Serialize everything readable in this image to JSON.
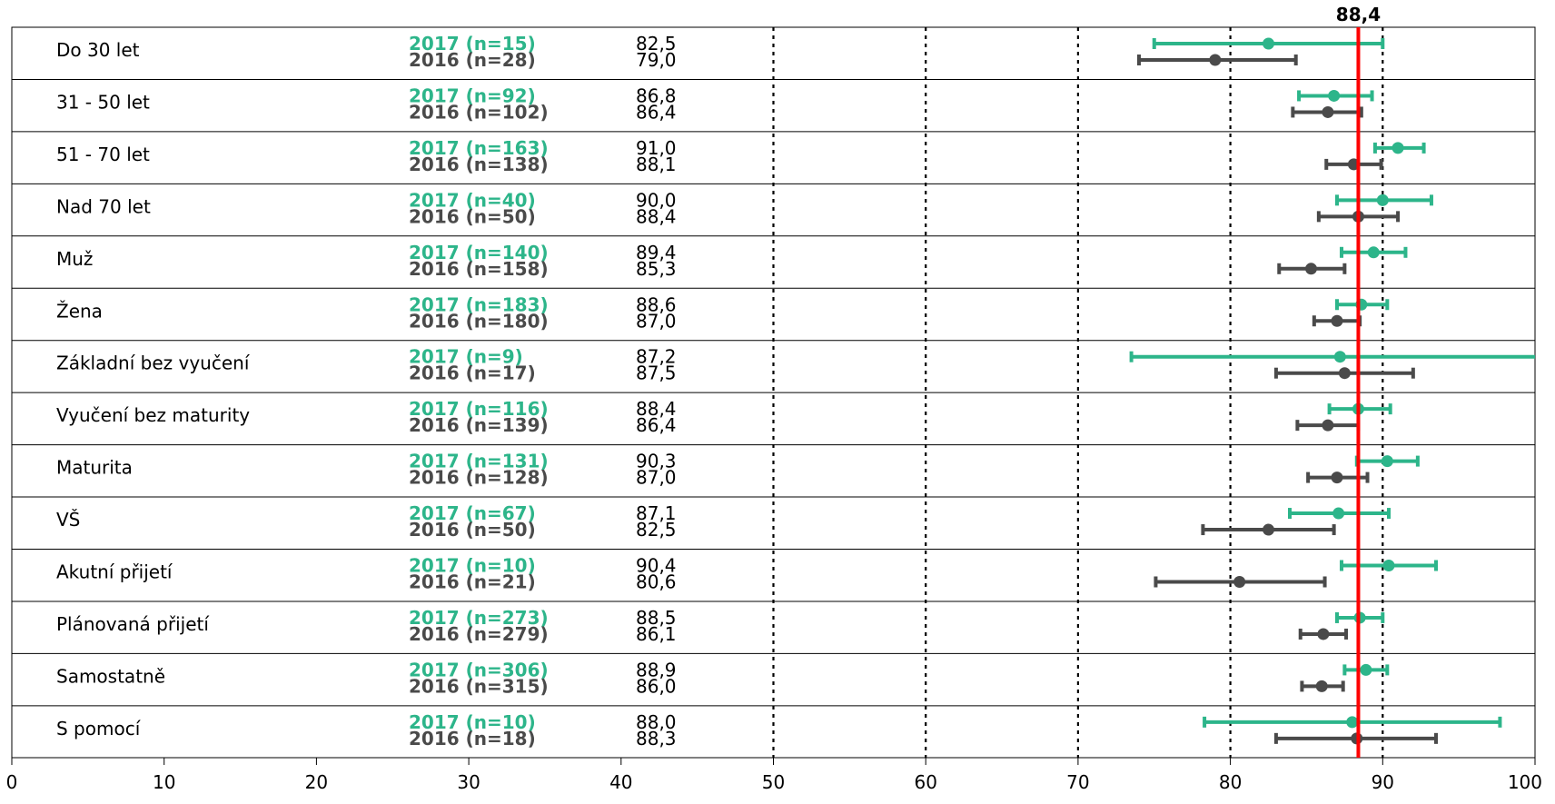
{
  "colors": {
    "series_2017": "#2db58a",
    "series_2016": "#4a4a4a",
    "reference": "#ff0000",
    "grid": "#000000"
  },
  "chart_data": {
    "type": "scatter",
    "subtype": "dot-plot-with-error-bars",
    "title": "",
    "xlabel": "",
    "ylabel": "",
    "xlim": [
      0,
      100
    ],
    "x_ticks": [
      "0",
      "10",
      "20",
      "30",
      "40",
      "50",
      "60",
      "70",
      "80",
      "90",
      "100"
    ],
    "dotted_gridlines_at": [
      50,
      60,
      70,
      80,
      90
    ],
    "reference_line": {
      "value": 88.4,
      "label": "88,4"
    },
    "rows": [
      {
        "category": "Do 30 let",
        "series": [
          {
            "label": "2017 (n=15)",
            "value_text": "82,5",
            "value": 82.5,
            "low": 75.0,
            "high": 90.0
          },
          {
            "label": "2016 (n=28)",
            "value_text": "79,0",
            "value": 79.0,
            "low": 74.0,
            "high": 84.3
          }
        ]
      },
      {
        "category": "31 - 50 let",
        "series": [
          {
            "label": "2017 (n=92)",
            "value_text": "86,8",
            "value": 86.8,
            "low": 84.5,
            "high": 89.3
          },
          {
            "label": "2016 (n=102)",
            "value_text": "86,4",
            "value": 86.4,
            "low": 84.1,
            "high": 88.6
          }
        ]
      },
      {
        "category": "51 - 70 let",
        "series": [
          {
            "label": "2017 (n=163)",
            "value_text": "91,0",
            "value": 91.0,
            "low": 89.5,
            "high": 92.7
          },
          {
            "label": "2016 (n=138)",
            "value_text": "88,1",
            "value": 88.1,
            "low": 86.3,
            "high": 89.9
          }
        ]
      },
      {
        "category": "Nad 70 let",
        "series": [
          {
            "label": "2017 (n=40)",
            "value_text": "90,0",
            "value": 90.0,
            "low": 87.0,
            "high": 93.2
          },
          {
            "label": "2016 (n=50)",
            "value_text": "88,4",
            "value": 88.4,
            "low": 85.8,
            "high": 91.0
          }
        ]
      },
      {
        "category": "Muž",
        "series": [
          {
            "label": "2017 (n=140)",
            "value_text": "89,4",
            "value": 89.4,
            "low": 87.3,
            "high": 91.5
          },
          {
            "label": "2016 (n=158)",
            "value_text": "85,3",
            "value": 85.3,
            "low": 83.2,
            "high": 87.5
          }
        ]
      },
      {
        "category": "Žena",
        "series": [
          {
            "label": "2017 (n=183)",
            "value_text": "88,6",
            "value": 88.6,
            "low": 87.0,
            "high": 90.3
          },
          {
            "label": "2016 (n=180)",
            "value_text": "87,0",
            "value": 87.0,
            "low": 85.5,
            "high": 88.5
          }
        ]
      },
      {
        "category": "Základní bez vyučení",
        "series": [
          {
            "label": "2017 (n=9)",
            "value_text": "87,2",
            "value": 87.2,
            "low": 73.5,
            "high": 100.5
          },
          {
            "label": "2016 (n=17)",
            "value_text": "87,5",
            "value": 87.5,
            "low": 83.0,
            "high": 92.0
          }
        ]
      },
      {
        "category": "Vyučení bez maturity",
        "series": [
          {
            "label": "2017 (n=116)",
            "value_text": "88,4",
            "value": 88.4,
            "low": 86.5,
            "high": 90.5
          },
          {
            "label": "2016 (n=139)",
            "value_text": "86,4",
            "value": 86.4,
            "low": 84.4,
            "high": 88.4
          }
        ]
      },
      {
        "category": "Maturita",
        "series": [
          {
            "label": "2017 (n=131)",
            "value_text": "90,3",
            "value": 90.3,
            "low": 88.3,
            "high": 92.3
          },
          {
            "label": "2016 (n=128)",
            "value_text": "87,0",
            "value": 87.0,
            "low": 85.1,
            "high": 89.0
          }
        ]
      },
      {
        "category": "VŠ",
        "series": [
          {
            "label": "2017 (n=67)",
            "value_text": "87,1",
            "value": 87.1,
            "low": 83.9,
            "high": 90.4
          },
          {
            "label": "2016 (n=50)",
            "value_text": "82,5",
            "value": 82.5,
            "low": 78.2,
            "high": 86.8
          }
        ]
      },
      {
        "category": "Akutní přijetí",
        "series": [
          {
            "label": "2017 (n=10)",
            "value_text": "90,4",
            "value": 90.4,
            "low": 87.3,
            "high": 93.5
          },
          {
            "label": "2016 (n=21)",
            "value_text": "80,6",
            "value": 80.6,
            "low": 75.1,
            "high": 86.2
          }
        ]
      },
      {
        "category": "Plánovaná přijetí",
        "series": [
          {
            "label": "2017 (n=273)",
            "value_text": "88,5",
            "value": 88.5,
            "low": 87.0,
            "high": 90.0
          },
          {
            "label": "2016 (n=279)",
            "value_text": "86,1",
            "value": 86.1,
            "low": 84.6,
            "high": 87.6
          }
        ]
      },
      {
        "category": "Samostatně",
        "series": [
          {
            "label": "2017 (n=306)",
            "value_text": "88,9",
            "value": 88.9,
            "low": 87.5,
            "high": 90.3
          },
          {
            "label": "2016 (n=315)",
            "value_text": "86,0",
            "value": 86.0,
            "low": 84.7,
            "high": 87.4
          }
        ]
      },
      {
        "category": "S pomocí",
        "series": [
          {
            "label": "2017 (n=10)",
            "value_text": "88,0",
            "value": 88.0,
            "low": 78.3,
            "high": 97.7
          },
          {
            "label": "2016 (n=18)",
            "value_text": "88,3",
            "value": 88.3,
            "low": 83.0,
            "high": 93.5
          }
        ]
      }
    ]
  }
}
